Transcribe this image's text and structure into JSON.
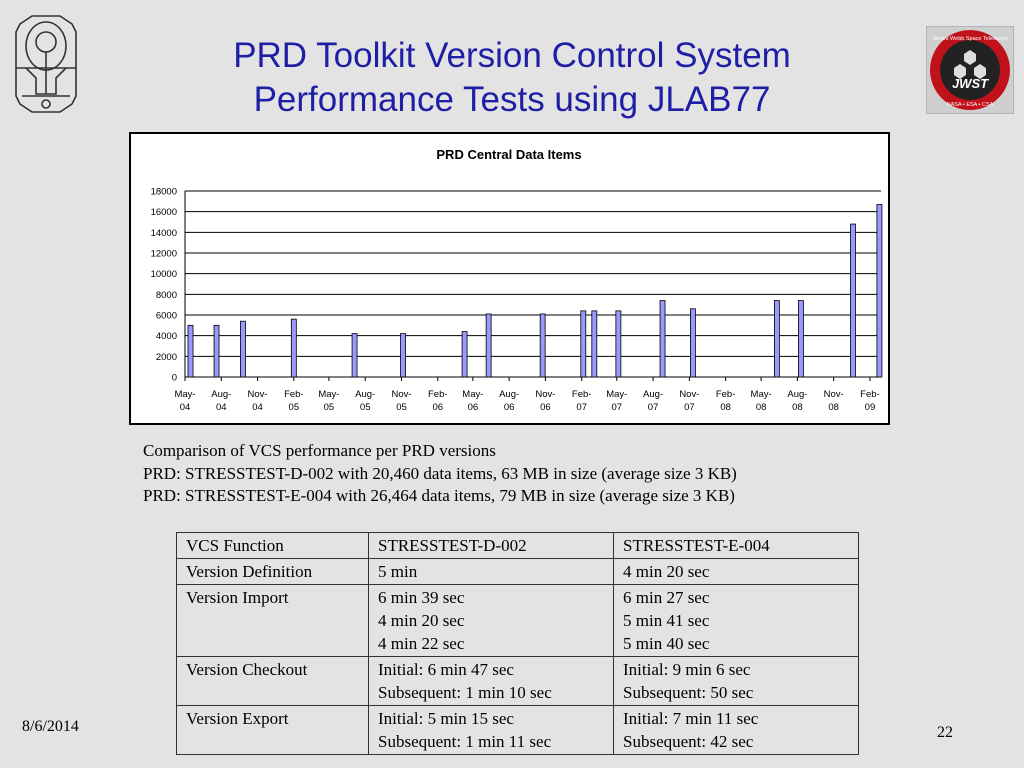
{
  "slide": {
    "title_line1": "PRD Toolkit Version Control System",
    "title_line2": "Performance Tests using JLAB77",
    "date": "8/6/2014",
    "page_number": "22",
    "left_logo_icon": "webb-telescope-outline-icon",
    "right_logo_icon": "jwst-mission-patch-icon",
    "right_logo": {
      "top_text": "James Webb Space Telescope",
      "center_text": "JWST",
      "bottom_text": "NASA • ESA • CSA"
    }
  },
  "chart_data": {
    "type": "bar",
    "title": "PRD Central Data Items",
    "xlabel": "",
    "ylabel": "",
    "ylim": [
      0,
      18000
    ],
    "yticks": [
      0,
      2000,
      4000,
      6000,
      8000,
      10000,
      12000,
      14000,
      16000,
      18000
    ],
    "grid": true,
    "legend": "none",
    "bar_color": "#9999ff",
    "x_axis_type": "date",
    "xlim": [
      "2004-05-01",
      "2009-03-01"
    ],
    "x_tick_labels": [
      [
        "May-",
        "04"
      ],
      [
        "Aug-",
        "04"
      ],
      [
        "Nov-",
        "04"
      ],
      [
        "Feb-",
        "05"
      ],
      [
        "May-",
        "05"
      ],
      [
        "Aug-",
        "05"
      ],
      [
        "Nov-",
        "05"
      ],
      [
        "Feb-",
        "06"
      ],
      [
        "May-",
        "06"
      ],
      [
        "Aug-",
        "06"
      ],
      [
        "Nov-",
        "06"
      ],
      [
        "Feb-",
        "07"
      ],
      [
        "May-",
        "07"
      ],
      [
        "Aug-",
        "07"
      ],
      [
        "Nov-",
        "07"
      ],
      [
        "Feb-",
        "08"
      ],
      [
        "May-",
        "08"
      ],
      [
        "Aug-",
        "08"
      ],
      [
        "Nov-",
        "08"
      ],
      [
        "Feb-",
        "09"
      ]
    ],
    "x_tick_dates": [
      "2004-05-01",
      "2004-08-01",
      "2004-11-01",
      "2005-02-01",
      "2005-05-01",
      "2005-08-01",
      "2005-11-01",
      "2006-02-01",
      "2006-05-01",
      "2006-08-01",
      "2006-11-01",
      "2007-02-01",
      "2007-05-01",
      "2007-08-01",
      "2007-11-01",
      "2008-02-01",
      "2008-05-01",
      "2008-08-01",
      "2008-11-01",
      "2009-02-01"
    ],
    "points": [
      {
        "x": "2004-05-15",
        "y": 5000
      },
      {
        "x": "2004-07-20",
        "y": 5000
      },
      {
        "x": "2004-09-25",
        "y": 5400
      },
      {
        "x": "2005-02-01",
        "y": 5600
      },
      {
        "x": "2005-07-05",
        "y": 4200
      },
      {
        "x": "2005-11-05",
        "y": 4200
      },
      {
        "x": "2006-04-10",
        "y": 4400
      },
      {
        "x": "2006-06-10",
        "y": 6100
      },
      {
        "x": "2006-10-25",
        "y": 6100
      },
      {
        "x": "2007-02-05",
        "y": 6400
      },
      {
        "x": "2007-03-05",
        "y": 6400
      },
      {
        "x": "2007-05-05",
        "y": 6400
      },
      {
        "x": "2007-08-25",
        "y": 7400
      },
      {
        "x": "2007-11-10",
        "y": 6600
      },
      {
        "x": "2008-06-10",
        "y": 7400
      },
      {
        "x": "2008-08-10",
        "y": 7400
      },
      {
        "x": "2008-12-20",
        "y": 14800
      },
      {
        "x": "2009-02-25",
        "y": 16700
      }
    ]
  },
  "description": {
    "line1": "Comparison of VCS performance per PRD versions",
    "line2": "PRD: STRESSTEST-D-002 with 20,460 data items, 63 MB in size (average size 3 KB)",
    "line3": "PRD: STRESSTEST-E-004 with 26,464 data items, 79 MB in size (average size 3 KB)"
  },
  "table": {
    "header": [
      "VCS Function",
      "STRESSTEST-D-002",
      "STRESSTEST-E-004"
    ],
    "rows": [
      {
        "function": "Version Definition",
        "d002": [
          "5 min"
        ],
        "e004": [
          "4 min 20 sec"
        ]
      },
      {
        "function": "Version Import",
        "d002": [
          "6 min 39 sec",
          "4 min 20 sec",
          "4 min 22 sec"
        ],
        "e004": [
          "6 min 27 sec",
          "5 min 41 sec",
          "5 min 40 sec"
        ]
      },
      {
        "function": "Version Checkout",
        "d002": [
          "Initial: 6 min 47 sec",
          "Subsequent: 1 min 10 sec"
        ],
        "e004": [
          "Initial: 9 min 6 sec",
          "Subsequent: 50 sec"
        ]
      },
      {
        "function": "Version Export",
        "d002": [
          "Initial: 5 min 15 sec",
          "Subsequent: 1 min 11 sec"
        ],
        "e004": [
          "Initial: 7 min 11 sec",
          "Subsequent: 42 sec"
        ]
      }
    ]
  }
}
